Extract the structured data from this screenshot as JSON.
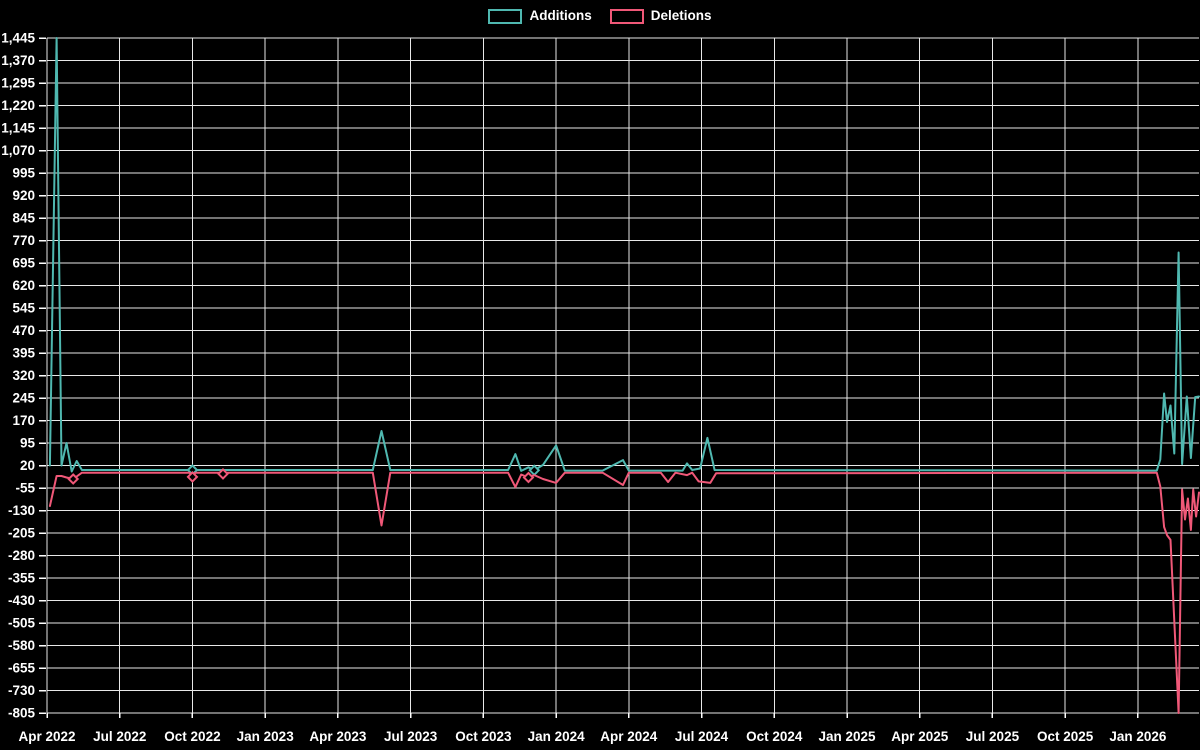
{
  "legend": {
    "additions_label": "Additions",
    "deletions_label": "Deletions"
  },
  "colors": {
    "background": "#000000",
    "grid": "#e8e8e8",
    "axis_text": "#ffffff",
    "additions": "#4fb8b0",
    "deletions": "#f05878"
  },
  "chart_data": {
    "type": "line",
    "title": "",
    "legend_position": "top-center",
    "grid": true,
    "x_range_years": [
      2022.25,
      2026.21
    ],
    "x_axis": {
      "tick_labels": [
        "Apr 2022",
        "Jul 2022",
        "Oct 2022",
        "Jan 2023",
        "Apr 2023",
        "Jul 2023",
        "Oct 2023",
        "Jan 2024",
        "Apr 2024",
        "Jul 2024",
        "Oct 2024",
        "Jan 2025",
        "Apr 2025",
        "Jul 2025",
        "Oct 2025",
        "Jan 2026"
      ],
      "tick_values": [
        2022.25,
        2022.5,
        2022.75,
        2023.0,
        2023.25,
        2023.5,
        2023.75,
        2024.0,
        2024.25,
        2024.5,
        2024.75,
        2025.0,
        2025.25,
        2025.5,
        2025.75,
        2026.0
      ]
    },
    "y_axis": {
      "min": -805,
      "max": 1445,
      "step": 75,
      "tick_labels": [
        "1,445",
        "1,370",
        "1,295",
        "1,220",
        "1,145",
        "1,070",
        "995",
        "920",
        "845",
        "770",
        "695",
        "620",
        "545",
        "470",
        "395",
        "320",
        "245",
        "170",
        "95",
        "20",
        "-55",
        "-130",
        "-205",
        "-280",
        "-355",
        "-430",
        "-505",
        "-580",
        "-655",
        "-730",
        "-805"
      ],
      "tick_values": [
        1445,
        1370,
        1295,
        1220,
        1145,
        1070,
        995,
        920,
        845,
        770,
        695,
        620,
        545,
        470,
        395,
        320,
        245,
        170,
        95,
        20,
        -55,
        -130,
        -205,
        -280,
        -355,
        -430,
        -505,
        -580,
        -655,
        -730,
        -805
      ]
    },
    "series": [
      {
        "name": "Additions",
        "color_key": "additions",
        "points": [
          [
            2022.26,
            20
          ],
          [
            2022.283,
            1445
          ],
          [
            2022.3,
            20
          ],
          [
            2022.317,
            95
          ],
          [
            2022.335,
            0
          ],
          [
            2022.352,
            35
          ],
          [
            2022.37,
            5
          ],
          [
            2022.75,
            5
          ],
          [
            2023.37,
            5
          ],
          [
            2023.4,
            135
          ],
          [
            2023.43,
            5
          ],
          [
            2023.835,
            5
          ],
          [
            2023.86,
            58
          ],
          [
            2023.88,
            2
          ],
          [
            2023.905,
            14
          ],
          [
            2023.925,
            4
          ],
          [
            2023.955,
            22
          ],
          [
            2024.0,
            87
          ],
          [
            2024.03,
            3
          ],
          [
            2024.16,
            3
          ],
          [
            2024.23,
            38
          ],
          [
            2024.25,
            3
          ],
          [
            2024.435,
            3
          ],
          [
            2024.45,
            27
          ],
          [
            2024.468,
            5
          ],
          [
            2024.495,
            10
          ],
          [
            2024.52,
            112
          ],
          [
            2024.545,
            5
          ],
          [
            2026.065,
            3
          ],
          [
            2026.077,
            40
          ],
          [
            2026.09,
            260
          ],
          [
            2026.1,
            165
          ],
          [
            2026.112,
            220
          ],
          [
            2026.125,
            60
          ],
          [
            2026.14,
            730
          ],
          [
            2026.152,
            25
          ],
          [
            2026.168,
            250
          ],
          [
            2026.182,
            45
          ],
          [
            2026.197,
            248
          ],
          [
            2026.21,
            250
          ]
        ],
        "markers": [
          [
            2022.75,
            5
          ],
          [
            2023.925,
            4
          ]
        ]
      },
      {
        "name": "Deletions",
        "color_key": "deletions",
        "points": [
          [
            2022.26,
            -115
          ],
          [
            2022.283,
            -15
          ],
          [
            2022.3,
            -15
          ],
          [
            2022.317,
            -20
          ],
          [
            2022.34,
            -25
          ],
          [
            2022.37,
            -4
          ],
          [
            2022.74,
            -4
          ],
          [
            2022.75,
            -18
          ],
          [
            2022.76,
            -4
          ],
          [
            2022.845,
            -4
          ],
          [
            2022.855,
            -8
          ],
          [
            2022.865,
            -4
          ],
          [
            2023.37,
            -4
          ],
          [
            2023.4,
            -180
          ],
          [
            2023.43,
            -4
          ],
          [
            2023.835,
            -4
          ],
          [
            2023.86,
            -52
          ],
          [
            2023.88,
            -10
          ],
          [
            2023.905,
            -20
          ],
          [
            2023.925,
            -12
          ],
          [
            2023.955,
            -25
          ],
          [
            2024.0,
            -38
          ],
          [
            2024.03,
            -4
          ],
          [
            2024.16,
            -4
          ],
          [
            2024.23,
            -45
          ],
          [
            2024.25,
            -4
          ],
          [
            2024.36,
            -4
          ],
          [
            2024.385,
            -35
          ],
          [
            2024.41,
            -4
          ],
          [
            2024.45,
            -12
          ],
          [
            2024.468,
            -4
          ],
          [
            2024.49,
            -33
          ],
          [
            2024.53,
            -38
          ],
          [
            2024.55,
            -6
          ],
          [
            2026.065,
            -4
          ],
          [
            2026.077,
            -50
          ],
          [
            2026.09,
            -185
          ],
          [
            2026.1,
            -212
          ],
          [
            2026.112,
            -228
          ],
          [
            2026.14,
            -805
          ],
          [
            2026.152,
            -60
          ],
          [
            2026.162,
            -160
          ],
          [
            2026.172,
            -90
          ],
          [
            2026.182,
            -195
          ],
          [
            2026.19,
            -60
          ],
          [
            2026.2,
            -150
          ],
          [
            2026.21,
            -70
          ]
        ],
        "markers": [
          [
            2022.34,
            -25
          ],
          [
            2022.75,
            -18
          ],
          [
            2022.855,
            -8
          ],
          [
            2023.905,
            -20
          ]
        ]
      }
    ]
  }
}
